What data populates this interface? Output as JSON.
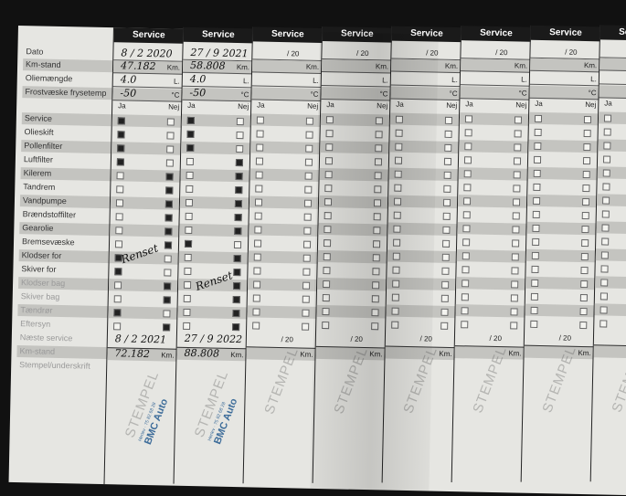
{
  "labels": [
    "Dato",
    "Km-stand",
    "Oliemængde",
    "Frostvæske frysetemp"
  ],
  "yes_label": "Ja",
  "no_label": "Nej",
  "service_label": "Service",
  "units": {
    "km": "Km.",
    "liter": "L.",
    "celsius": "°C",
    "year_prefix": "20"
  },
  "check_items": [
    "Service",
    "Olieskift",
    "Pollenfilter",
    "Luftfilter",
    "Kilerem",
    "Tandrem",
    "Vandpumpe",
    "Brændstoffilter",
    "Gearolie",
    "Bremsevæske",
    "Klodser for",
    "Skiver for",
    "Klodser bag",
    "Skiver bag",
    "Tændrør",
    "Eftersyn"
  ],
  "footer_labels": [
    "Næste service",
    "Km-stand",
    "Stempel/underskrift"
  ],
  "stamp_watermark": "STEMPEL",
  "services": [
    {
      "date": "8 / 2 2020",
      "km": "47.182",
      "oil": "4.0",
      "frost": "-50",
      "checks": [
        "ja",
        "ja",
        "ja",
        "ja",
        "nej",
        "nej",
        "nej",
        "nej",
        "nej",
        "nej",
        "ja",
        "ja",
        "nej",
        "nej",
        "ja",
        "nej"
      ],
      "next_date": "8 / 2 2021",
      "next_km": "72.182",
      "note": "Renset",
      "stamp": "BMC Auto",
      "stamp_small": "Herlev · 75 82 68 28"
    },
    {
      "date": "27 / 9 2021",
      "km": "58.808",
      "oil": "4.0",
      "frost": "-50",
      "checks": [
        "ja",
        "ja",
        "ja",
        "nej",
        "nej",
        "nej",
        "nej",
        "nej",
        "nej",
        "ja",
        "nej",
        "nej",
        "nej",
        "nej",
        "nej",
        "nej"
      ],
      "next_date": "27 / 9 2022",
      "next_km": "88.808",
      "note": "Renset",
      "stamp": "BMC Auto",
      "stamp_small": "Herlev · 75 82 68 28"
    },
    {
      "date": "/ 20"
    },
    {
      "date": "/ 20"
    },
    {
      "date": "/ 20"
    },
    {
      "date": "/ 20"
    },
    {
      "date": "/ 20"
    },
    {
      "date": "/ 20"
    }
  ]
}
